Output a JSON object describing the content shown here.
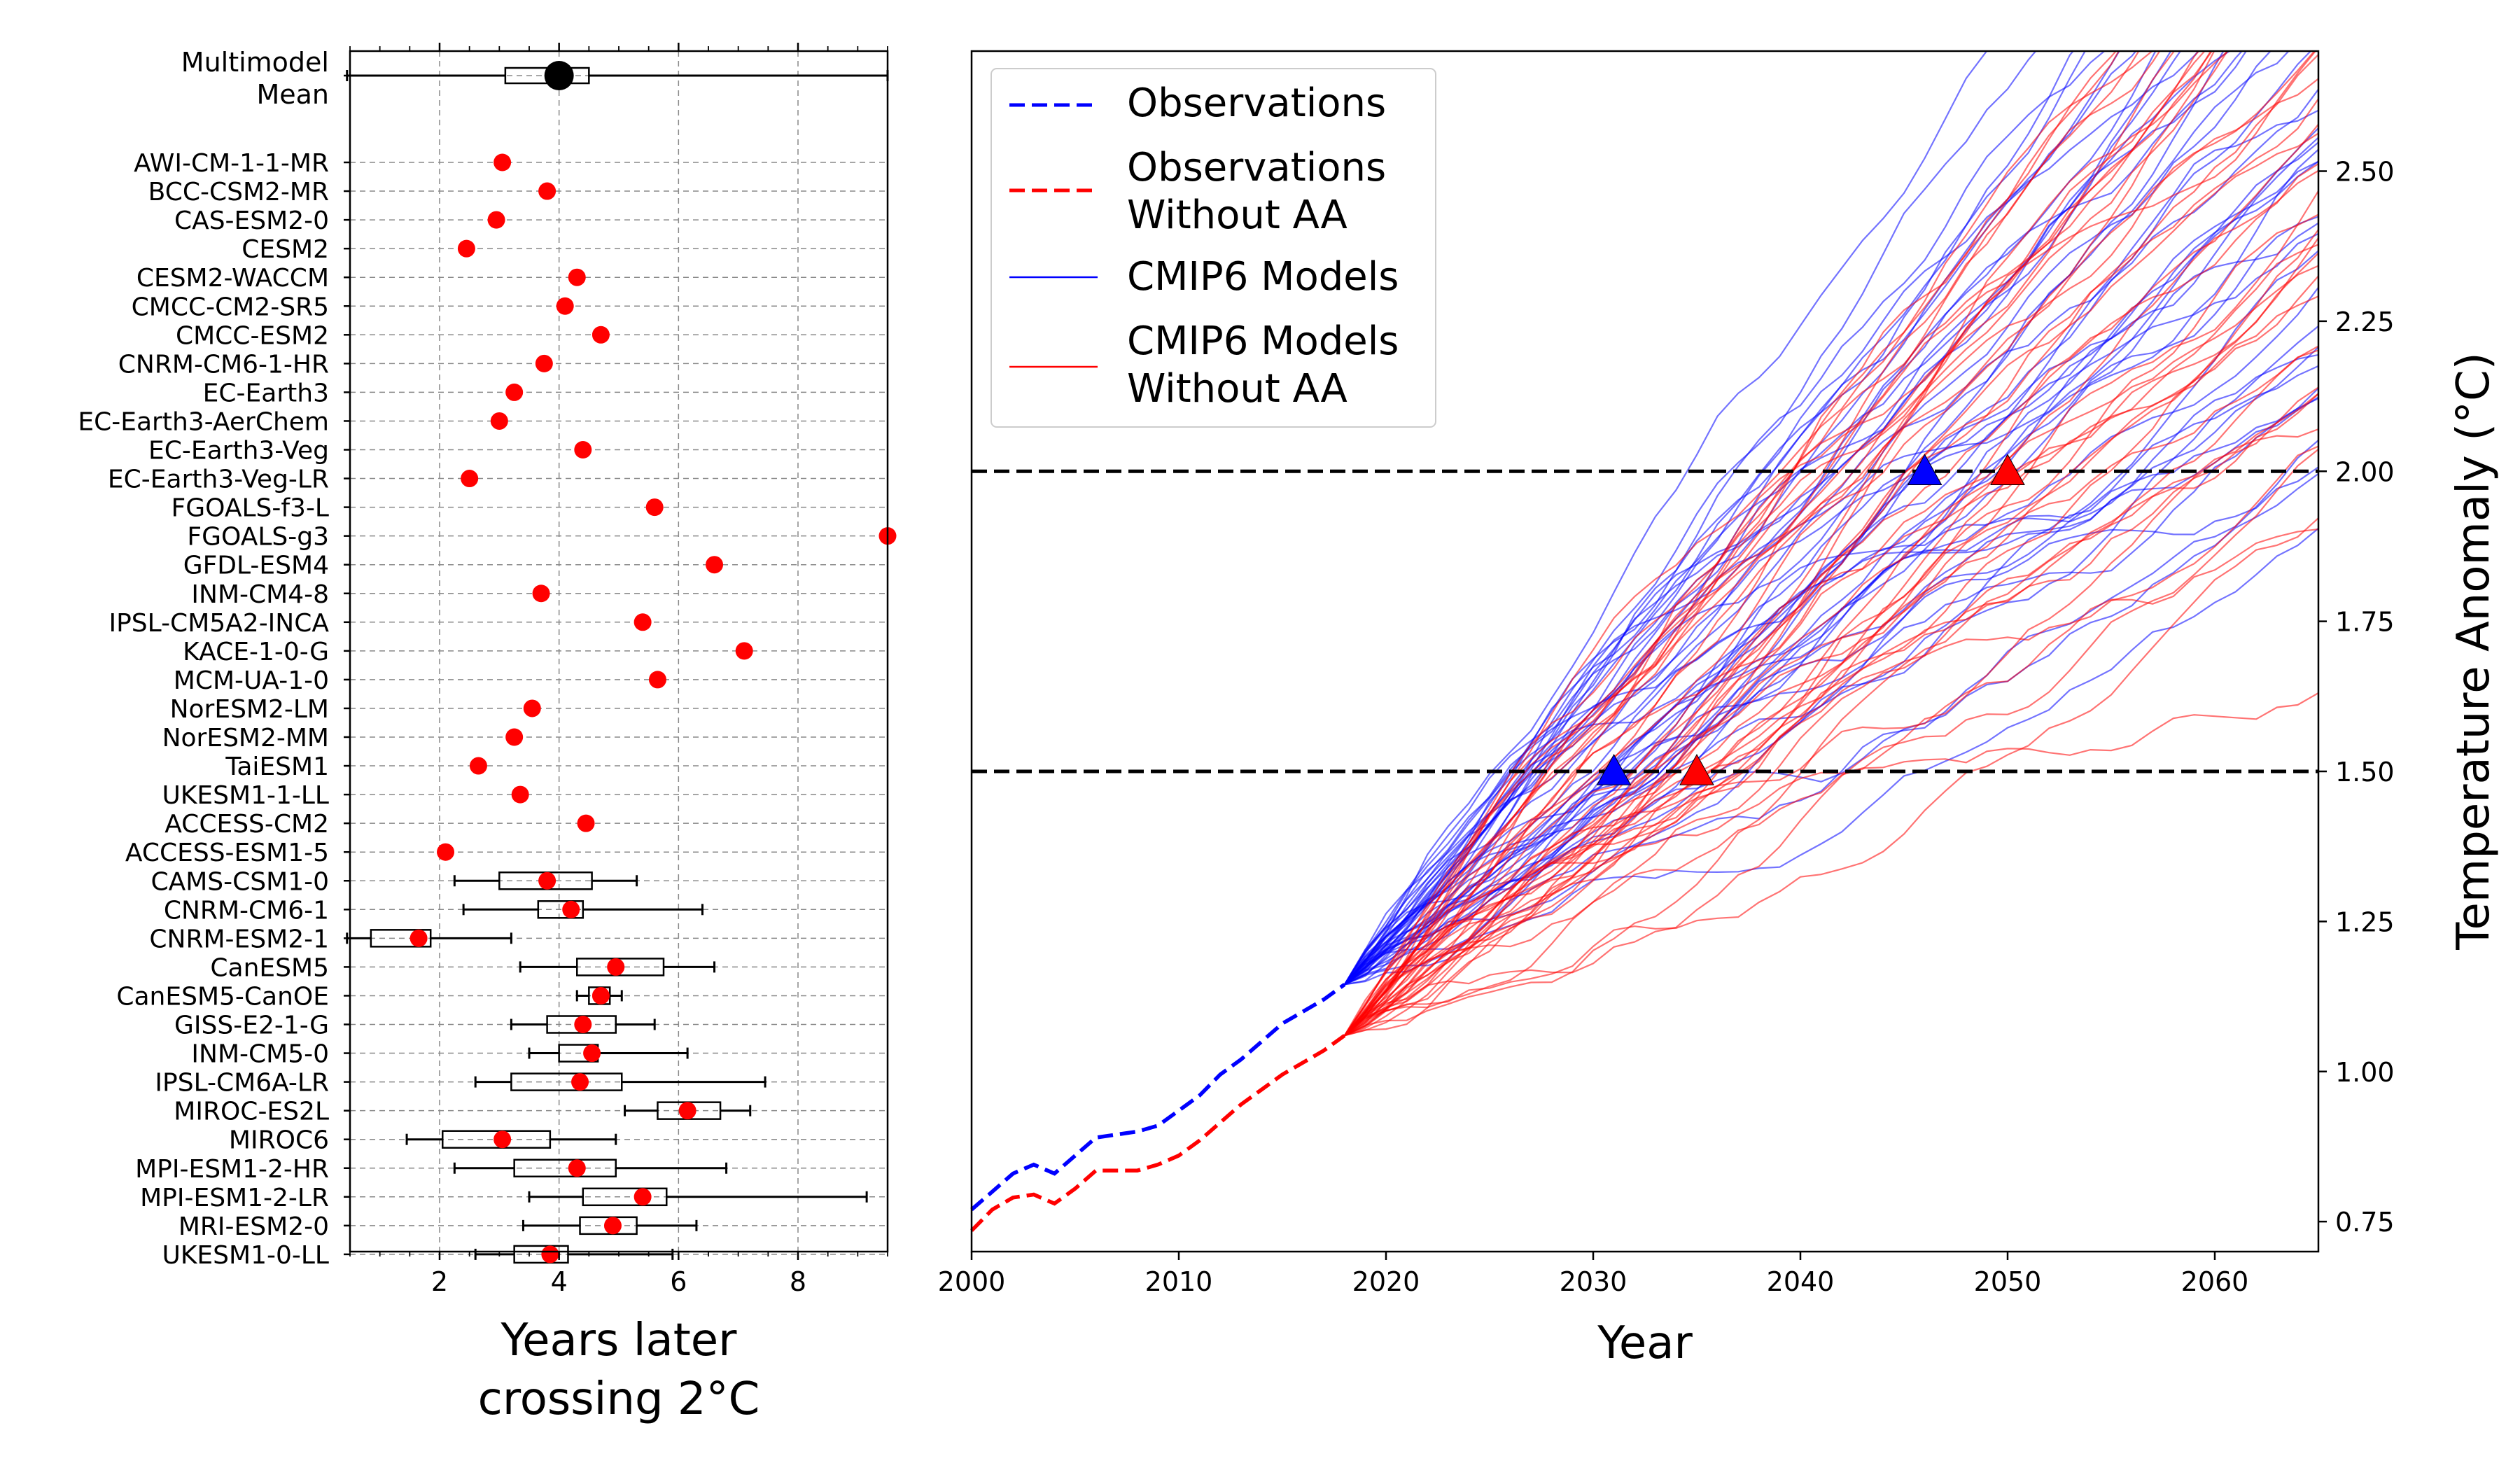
{
  "chart_data": [
    {
      "type": "boxplot",
      "xlabel_lines": [
        "Years later",
        "crossing 2°C"
      ],
      "xlim": [
        0.5,
        9.5
      ],
      "xticks": [
        2,
        4,
        6,
        8
      ],
      "grid": true,
      "mean": {
        "label_lines": [
          "Multimodel",
          "Mean"
        ],
        "value": 4.0,
        "whisker_low": 0.45,
        "q1": 3.1,
        "q3": 4.5,
        "whisker_high": 9.5
      },
      "models": [
        {
          "name": "AWI-CM-1-1-MR",
          "value": 3.05
        },
        {
          "name": "BCC-CSM2-MR",
          "value": 3.8
        },
        {
          "name": "CAS-ESM2-0",
          "value": 2.95
        },
        {
          "name": "CESM2",
          "value": 2.45
        },
        {
          "name": "CESM2-WACCM",
          "value": 4.3
        },
        {
          "name": "CMCC-CM2-SR5",
          "value": 4.1
        },
        {
          "name": "CMCC-ESM2",
          "value": 4.7
        },
        {
          "name": "CNRM-CM6-1-HR",
          "value": 3.75
        },
        {
          "name": "EC-Earth3",
          "value": 3.25
        },
        {
          "name": "EC-Earth3-AerChem",
          "value": 3.0
        },
        {
          "name": "EC-Earth3-Veg",
          "value": 4.4
        },
        {
          "name": "EC-Earth3-Veg-LR",
          "value": 2.5
        },
        {
          "name": "FGOALS-f3-L",
          "value": 5.6
        },
        {
          "name": "FGOALS-g3",
          "value": 9.5
        },
        {
          "name": "GFDL-ESM4",
          "value": 6.6
        },
        {
          "name": "INM-CM4-8",
          "value": 3.7
        },
        {
          "name": "IPSL-CM5A2-INCA",
          "value": 5.4
        },
        {
          "name": "KACE-1-0-G",
          "value": 7.1
        },
        {
          "name": "MCM-UA-1-0",
          "value": 5.65
        },
        {
          "name": "NorESM2-LM",
          "value": 3.55
        },
        {
          "name": "NorESM2-MM",
          "value": 3.25
        },
        {
          "name": "TaiESM1",
          "value": 2.65
        },
        {
          "name": "UKESM1-1-LL",
          "value": 3.35
        },
        {
          "name": "ACCESS-CM2",
          "value": 4.45
        },
        {
          "name": "ACCESS-ESM1-5",
          "value": 2.1
        },
        {
          "name": "CAMS-CSM1-0",
          "value": 3.8,
          "whisker_low": 2.25,
          "q1": 3.0,
          "q3": 4.55,
          "whisker_high": 5.3
        },
        {
          "name": "CNRM-CM6-1",
          "value": 4.2,
          "whisker_low": 2.4,
          "q1": 3.65,
          "q3": 4.4,
          "whisker_high": 6.4
        },
        {
          "name": "CNRM-ESM2-1",
          "value": 1.65,
          "whisker_low": 0.45,
          "q1": 0.85,
          "q3": 1.85,
          "whisker_high": 3.2
        },
        {
          "name": "CanESM5",
          "value": 4.95,
          "whisker_low": 3.35,
          "q1": 4.3,
          "q3": 5.75,
          "whisker_high": 6.6
        },
        {
          "name": "CanESM5-CanOE",
          "value": 4.7,
          "whisker_low": 4.3,
          "q1": 4.5,
          "q3": 4.85,
          "whisker_high": 5.05
        },
        {
          "name": "GISS-E2-1-G",
          "value": 4.4,
          "whisker_low": 3.2,
          "q1": 3.8,
          "q3": 4.95,
          "whisker_high": 5.6
        },
        {
          "name": "INM-CM5-0",
          "value": 4.55,
          "whisker_low": 3.5,
          "q1": 4.0,
          "q3": 4.65,
          "whisker_high": 6.15
        },
        {
          "name": "IPSL-CM6A-LR",
          "value": 4.35,
          "whisker_low": 2.6,
          "q1": 3.2,
          "q3": 5.05,
          "whisker_high": 7.45
        },
        {
          "name": "MIROC-ES2L",
          "value": 6.15,
          "whisker_low": 5.1,
          "q1": 5.65,
          "q3": 6.7,
          "whisker_high": 7.2
        },
        {
          "name": "MIROC6",
          "value": 3.05,
          "whisker_low": 1.45,
          "q1": 2.05,
          "q3": 3.85,
          "whisker_high": 4.95
        },
        {
          "name": "MPI-ESM1-2-HR",
          "value": 4.3,
          "whisker_low": 2.25,
          "q1": 3.25,
          "q3": 4.95,
          "whisker_high": 6.8
        },
        {
          "name": "MPI-ESM1-2-LR",
          "value": 5.4,
          "whisker_low": 3.5,
          "q1": 4.4,
          "q3": 5.8,
          "whisker_high": 9.15
        },
        {
          "name": "MRI-ESM2-0",
          "value": 4.9,
          "whisker_low": 3.4,
          "q1": 4.35,
          "q3": 5.3,
          "whisker_high": 6.3
        },
        {
          "name": "UKESM1-0-LL",
          "value": 3.85,
          "whisker_low": 2.6,
          "q1": 3.25,
          "q3": 4.15,
          "whisker_high": 5.9
        }
      ]
    },
    {
      "type": "line",
      "xlabel": "Year",
      "ylabel": "Temperature Anomaly (°C)",
      "xlim": [
        2000,
        2065
      ],
      "ylim": [
        0.7,
        2.7
      ],
      "xticks": [
        2000,
        2010,
        2020,
        2030,
        2040,
        2050,
        2060
      ],
      "yticks": [
        "0.75",
        "1.00",
        "1.25",
        "1.50",
        "1.75",
        "2.00",
        "2.25",
        "2.50"
      ],
      "hlines": [
        1.5,
        2.0
      ],
      "legend": {
        "position": "top-left",
        "entries": [
          {
            "label_lines": [
              "Observations"
            ],
            "color": "#0000ff",
            "style": "dashed"
          },
          {
            "label_lines": [
              "Observations",
              "Without AA"
            ],
            "color": "#ff0000",
            "style": "dashed"
          },
          {
            "label_lines": [
              "CMIP6 Models"
            ],
            "color": "#0000ff",
            "style": "solid"
          },
          {
            "label_lines": [
              "CMIP6 Models",
              "Without AA"
            ],
            "color": "#ff0000",
            "style": "solid"
          }
        ]
      },
      "observations": {
        "color": "#0000ff",
        "x": [
          2000,
          2001,
          2002,
          2003,
          2004,
          2005,
          2006,
          2007,
          2008,
          2009,
          2010,
          2011,
          2012,
          2013,
          2014,
          2015,
          2016,
          2017,
          2018
        ],
        "y": [
          0.77,
          0.8,
          0.83,
          0.845,
          0.83,
          0.86,
          0.89,
          0.895,
          0.9,
          0.91,
          0.935,
          0.96,
          0.995,
          1.02,
          1.05,
          1.08,
          1.1,
          1.12,
          1.145
        ]
      },
      "observations_without_aa": {
        "color": "#ff0000",
        "x": [
          2000,
          2001,
          2002,
          2003,
          2004,
          2005,
          2006,
          2007,
          2008,
          2009,
          2010,
          2011,
          2012,
          2013,
          2014,
          2015,
          2016,
          2017,
          2018
        ],
        "y": [
          0.735,
          0.77,
          0.79,
          0.795,
          0.78,
          0.805,
          0.835,
          0.835,
          0.835,
          0.845,
          0.86,
          0.885,
          0.915,
          0.945,
          0.97,
          0.995,
          1.015,
          1.035,
          1.06
        ]
      },
      "model_ensembles": [
        {
          "color": "#0000ff",
          "count": 42,
          "start_year": 2018,
          "start_value": 1.145,
          "median_slope": 0.0288,
          "slope_spread": [
            0.018,
            0.046
          ]
        },
        {
          "color": "#ff0000",
          "count": 42,
          "start_year": 2018,
          "start_value": 1.06,
          "median_slope": 0.029,
          "slope_spread": [
            0.017,
            0.046
          ]
        }
      ],
      "markers": [
        {
          "x": 2031,
          "y": 1.5,
          "color": "#0000ff",
          "shape": "triangle"
        },
        {
          "x": 2035,
          "y": 1.5,
          "color": "#ff0000",
          "shape": "triangle"
        },
        {
          "x": 2046,
          "y": 2.0,
          "color": "#0000ff",
          "shape": "triangle"
        },
        {
          "x": 2050,
          "y": 2.0,
          "color": "#ff0000",
          "shape": "triangle"
        }
      ]
    }
  ]
}
